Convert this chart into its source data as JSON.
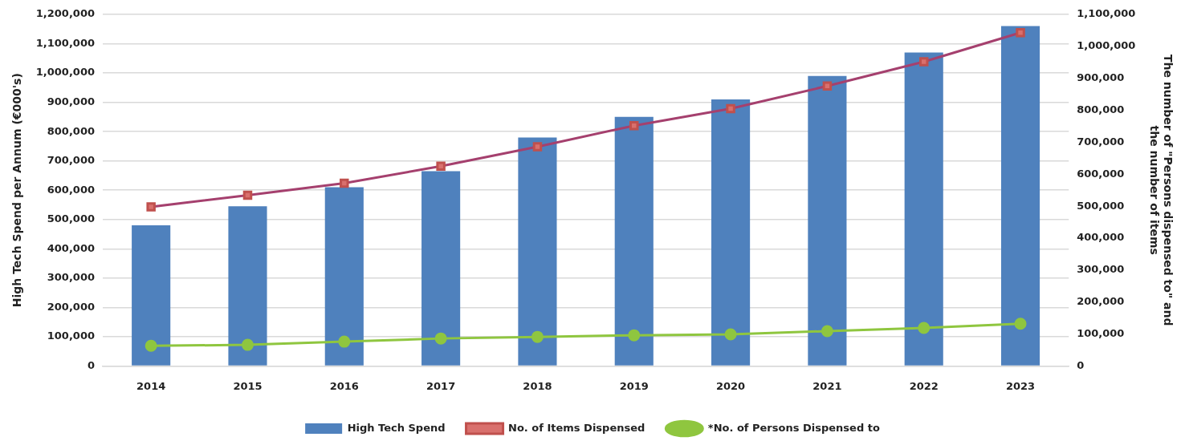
{
  "chart_data": {
    "type": "bar",
    "ylabel": "High Tech Spend per Annum (€000's)",
    "y2label": "The number of \"Persons dispensed to\" and the number of items",
    "categories": [
      "2014",
      "2015",
      "2016",
      "2017",
      "2018",
      "2019",
      "2020",
      "2021",
      "2022",
      "2023"
    ],
    "series": [
      {
        "name": "High Tech Spend",
        "color": "#4f81bd",
        "values": [
          480000,
          545000,
          610000,
          665000,
          780000,
          850000,
          910000,
          990000,
          1070000,
          1160000
        ]
      },
      {
        "name": "No. of Items Dispensed",
        "type": "line",
        "axis": "y2",
        "color": "#a5406e",
        "marker": "square",
        "values": [
          498000,
          534000,
          572000,
          625000,
          686000,
          752000,
          805000,
          876000,
          952000,
          1043000
        ]
      },
      {
        "name": "*No. of Persons Dispensed to",
        "type": "line",
        "axis": "y2",
        "color": "#8fc63f",
        "marker": "circle",
        "values": [
          63000,
          66000,
          76000,
          86000,
          91000,
          96000,
          99000,
          109000,
          119000,
          132000
        ]
      }
    ],
    "ylim": [
      0,
      1200000
    ],
    "yticks": [
      0,
      {
        "value": 100000,
        "label": "100,000"
      },
      {
        "value": 200000,
        "label": "200,000"
      },
      {
        "value": 300000,
        "label": "300,000"
      },
      {
        "value": 400000,
        "label": "400,000"
      },
      {
        "value": 500000,
        "label": "500,000"
      },
      {
        "value": 600000,
        "label": "600,000"
      },
      {
        "value": 700000,
        "label": "700,000"
      },
      {
        "value": 800000,
        "label": "800,000"
      },
      {
        "value": 900000,
        "label": "900,000"
      },
      {
        "value": 1000000,
        "label": "1,000,000"
      },
      {
        "value": 1100000,
        "label": "1,100,000"
      },
      {
        "value": 1200000,
        "label": "1,200,000"
      }
    ],
    "y2lim": [
      0,
      1100000
    ],
    "y2ticks": [
      0,
      {
        "value": 100000,
        "label": "100,000"
      },
      {
        "value": 200000,
        "label": "200,000"
      },
      {
        "value": 300000,
        "label": "300,000"
      },
      {
        "value": 400000,
        "label": "400,000"
      },
      {
        "value": 500000,
        "label": "500,000"
      },
      {
        "value": 600000,
        "label": "600,000"
      },
      {
        "value": 700000,
        "label": "700,000"
      },
      {
        "value": 800000,
        "label": "800,000"
      },
      {
        "value": 900000,
        "label": "900,000"
      },
      {
        "value": 1000000,
        "label": "1,000,000"
      },
      {
        "value": 1100000,
        "label": "1,100,000"
      }
    ],
    "grid": "y",
    "legend": "bottom"
  }
}
